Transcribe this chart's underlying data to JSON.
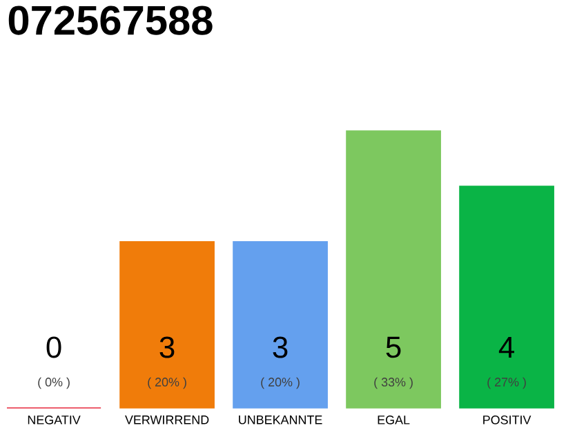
{
  "chart_data": {
    "type": "bar",
    "title": "072567588",
    "categories": [
      "NEGATIV",
      "VERWIRREND",
      "UNBEKANNTE",
      "EGAL",
      "POSITIV"
    ],
    "values": [
      0,
      3,
      3,
      5,
      4
    ],
    "colors": [
      "#e8283c",
      "#f07c0a",
      "#64a0ee",
      "#7dc85f",
      "#0ab446"
    ],
    "ylim": [
      0,
      5
    ],
    "tick_labels": "x",
    "data_labels": true,
    "annotations": [
      "( 0% )",
      "( 20% )",
      "( 20% )",
      "( 33% )",
      "( 27% )"
    ]
  }
}
